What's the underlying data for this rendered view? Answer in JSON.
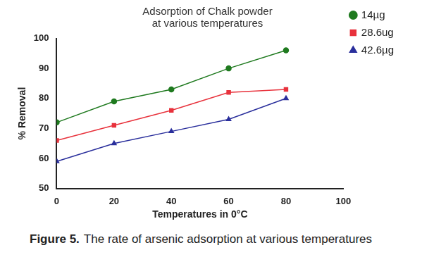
{
  "chart_data": {
    "type": "line",
    "title": [
      "Adsorption of Chalk powder",
      "at various temperatures"
    ],
    "x_label": "Temperatures in 0°C",
    "y_label": "% Removal",
    "caption_label": "Figure 5.",
    "caption": "The rate of arsenic adsorption at various temperatures",
    "x": [
      0,
      20,
      40,
      60,
      80
    ],
    "series": [
      {
        "name": "14µg",
        "color": "#1f7a1f",
        "marker": "circle",
        "values": [
          72,
          79,
          83,
          90,
          96
        ]
      },
      {
        "name": "28.6ug",
        "color": "#e8323c",
        "marker": "rect",
        "values": [
          66,
          71,
          76,
          82,
          83
        ]
      },
      {
        "name": "42.6µg",
        "color": "#2a2f9c",
        "marker": "triangle",
        "values": [
          59,
          65,
          69,
          73,
          80
        ]
      }
    ],
    "xlim": [
      0,
      100
    ],
    "xticks": [
      0,
      20,
      40,
      60,
      80,
      100
    ],
    "ylim": [
      50,
      100
    ],
    "yticks": [
      50,
      60,
      70,
      80,
      90,
      100
    ],
    "grid": false,
    "legend": "right"
  }
}
